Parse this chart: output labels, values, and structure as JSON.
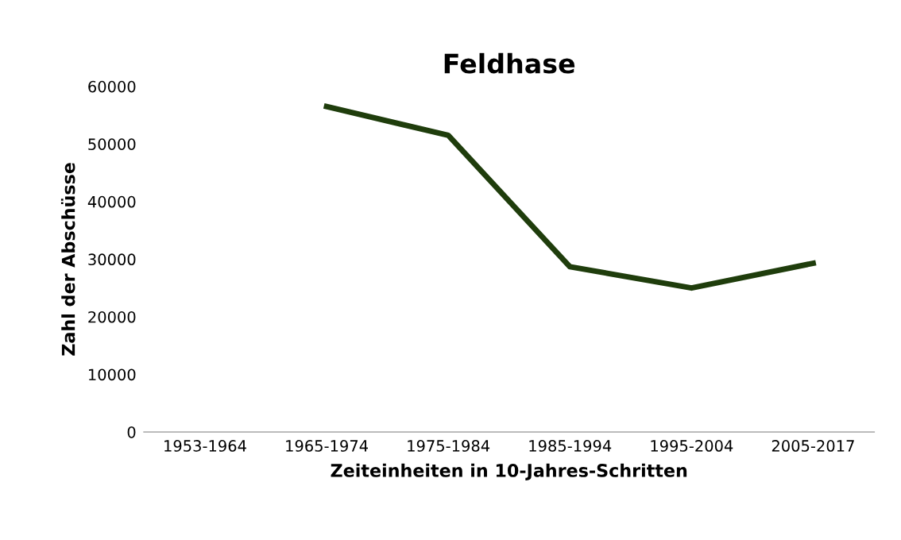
{
  "chart_data": {
    "type": "line",
    "title": "Feldhase",
    "xlabel": "Zeiteinheiten in 10-Jahres-Schritten",
    "ylabel": "Zahl der Abschüsse",
    "categories": [
      "1953-1964",
      "1965-1974",
      "1975-1984",
      "1985-1994",
      "1995-2004",
      "2005-2017"
    ],
    "series": [
      {
        "color": "#1f3d0c",
        "values": [
          null,
          56500,
          51500,
          28700,
          25000,
          29300
        ]
      }
    ],
    "ylim": [
      0,
      60000
    ],
    "yticks": [
      0,
      10000,
      20000,
      30000,
      40000,
      50000,
      60000
    ],
    "grid": false,
    "legend": false,
    "marker": "none",
    "line_style": "solid"
  }
}
